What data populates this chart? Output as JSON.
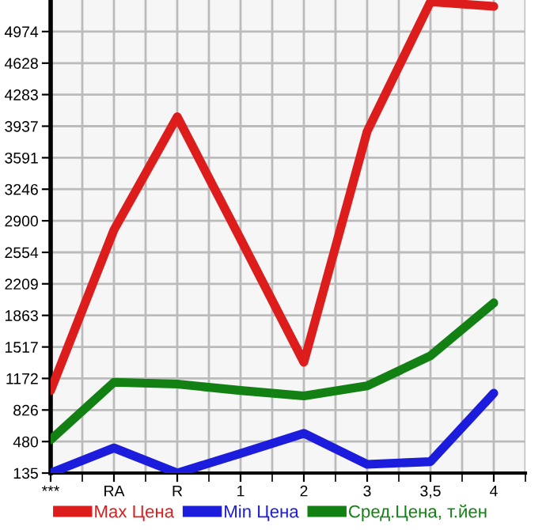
{
  "chart_data": {
    "type": "line",
    "categories": [
      "***",
      "RA",
      "R",
      "1",
      "2",
      "3",
      "3,5",
      "4"
    ],
    "series": [
      {
        "name": "Max Цена",
        "color": "#dd1c1c",
        "values": [
          1040,
          2800,
          4040,
          2700,
          1350,
          3880,
          5300,
          5250
        ]
      },
      {
        "name": "Min Цена",
        "color": "#1c1cdd",
        "values": [
          135,
          410,
          135,
          350,
          570,
          230,
          260,
          1010
        ]
      },
      {
        "name": "Сред.Цена, т.йен",
        "color": "#138013",
        "values": [
          500,
          1130,
          1110,
          1040,
          980,
          1090,
          1420,
          2000
        ]
      }
    ],
    "ylim": [
      135,
      5320
    ],
    "yticks": [
      135,
      480,
      826,
      1172,
      1517,
      1863,
      2209,
      2554,
      2900,
      3246,
      3591,
      3937,
      4283,
      4628,
      4974
    ],
    "grid": true,
    "legend": "bottom",
    "marker": "none",
    "line_style": "solid"
  }
}
